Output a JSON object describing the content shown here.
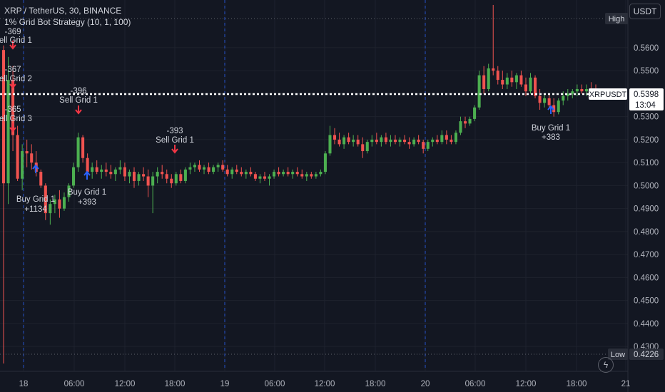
{
  "header": {
    "symbol_line": "XRP / TetherUS, 30, BINANCE",
    "strategy_line": "1% Grid Bot Strategy (10, 1, 100)"
  },
  "toolbar": {
    "currency_button": "USDT"
  },
  "price_axis": {
    "ticks": [
      "0.5600",
      "0.5500",
      "0.5400",
      "0.5300",
      "0.5200",
      "0.5100",
      "0.5000",
      "0.4900",
      "0.4800",
      "0.4700",
      "0.4600",
      "0.4500",
      "0.4400",
      "0.4300"
    ],
    "high_label": "High",
    "low_label": "Low",
    "low_value": "0.4226",
    "last_symbol": "XRPUSDT",
    "last_price": "0.5398",
    "countdown": "13:04"
  },
  "time_axis": {
    "ticks": [
      "18",
      "06:00",
      "12:00",
      "18:00",
      "19",
      "06:00",
      "12:00",
      "18:00",
      "20",
      "06:00",
      "12:00",
      "18:00",
      "21"
    ]
  },
  "colors": {
    "background": "#131722",
    "up": "#26a69a",
    "up_candle": "#4caf50",
    "down_candle": "#f05350",
    "grid_divider": "#2962ff",
    "text": "#d1d4dc"
  },
  "chart_data": {
    "type": "candlestick",
    "ylim": [
      0.4195,
      0.573
    ],
    "high": 0.5786,
    "low": 0.4226,
    "last": 0.5398,
    "session_breaks": [
      "18",
      "19",
      "20"
    ],
    "annotations": [
      {
        "kind": "sell",
        "label": "Sell Grid 1",
        "pnl": "-369",
        "price": 0.563
      },
      {
        "kind": "sell",
        "label": "Sell Grid 2",
        "pnl": "-367",
        "price": 0.552
      },
      {
        "kind": "sell",
        "label": "Sell Grid 3",
        "pnl": "-365",
        "price": 0.539
      },
      {
        "kind": "sell",
        "label": "Sell Grid 1",
        "pnl": "-396",
        "price": 0.535
      },
      {
        "kind": "sell",
        "label": "Sell Grid 1",
        "pnl": "-393",
        "price": 0.516
      },
      {
        "kind": "buy",
        "label": "Buy Grid 1",
        "pnl": "+1134",
        "price": 0.5
      },
      {
        "kind": "buy",
        "label": "Buy Grid 1",
        "pnl": "+393",
        "price": 0.503
      },
      {
        "kind": "buy",
        "label": "Buy Grid 1",
        "pnl": "+383",
        "price": 0.532
      }
    ],
    "candles": [
      {
        "o": 0.559,
        "h": 0.561,
        "l": 0.4226,
        "c": 0.501
      },
      {
        "o": 0.501,
        "h": 0.556,
        "l": 0.492,
        "c": 0.546
      },
      {
        "o": 0.546,
        "h": 0.552,
        "l": 0.515,
        "c": 0.522
      },
      {
        "o": 0.522,
        "h": 0.526,
        "l": 0.502,
        "c": 0.503
      },
      {
        "o": 0.503,
        "h": 0.518,
        "l": 0.498,
        "c": 0.515
      },
      {
        "o": 0.515,
        "h": 0.52,
        "l": 0.508,
        "c": 0.514
      },
      {
        "o": 0.514,
        "h": 0.518,
        "l": 0.507,
        "c": 0.51
      },
      {
        "o": 0.51,
        "h": 0.515,
        "l": 0.504,
        "c": 0.506
      },
      {
        "o": 0.506,
        "h": 0.507,
        "l": 0.499,
        "c": 0.5
      },
      {
        "o": 0.5,
        "h": 0.501,
        "l": 0.485,
        "c": 0.488
      },
      {
        "o": 0.488,
        "h": 0.494,
        "l": 0.483,
        "c": 0.492
      },
      {
        "o": 0.492,
        "h": 0.496,
        "l": 0.488,
        "c": 0.494
      },
      {
        "o": 0.494,
        "h": 0.498,
        "l": 0.486,
        "c": 0.49
      },
      {
        "o": 0.49,
        "h": 0.497,
        "l": 0.489,
        "c": 0.495
      },
      {
        "o": 0.495,
        "h": 0.501,
        "l": 0.493,
        "c": 0.5
      },
      {
        "o": 0.5,
        "h": 0.51,
        "l": 0.499,
        "c": 0.508
      },
      {
        "o": 0.508,
        "h": 0.523,
        "l": 0.506,
        "c": 0.521
      },
      {
        "o": 0.521,
        "h": 0.522,
        "l": 0.51,
        "c": 0.512
      },
      {
        "o": 0.512,
        "h": 0.514,
        "l": 0.504,
        "c": 0.506
      },
      {
        "o": 0.506,
        "h": 0.51,
        "l": 0.503,
        "c": 0.508
      },
      {
        "o": 0.508,
        "h": 0.511,
        "l": 0.505,
        "c": 0.506
      },
      {
        "o": 0.506,
        "h": 0.509,
        "l": 0.503,
        "c": 0.507
      },
      {
        "o": 0.507,
        "h": 0.51,
        "l": 0.504,
        "c": 0.506
      },
      {
        "o": 0.506,
        "h": 0.509,
        "l": 0.503,
        "c": 0.505
      },
      {
        "o": 0.505,
        "h": 0.508,
        "l": 0.502,
        "c": 0.507
      },
      {
        "o": 0.507,
        "h": 0.511,
        "l": 0.505,
        "c": 0.508
      },
      {
        "o": 0.508,
        "h": 0.51,
        "l": 0.502,
        "c": 0.504
      },
      {
        "o": 0.504,
        "h": 0.507,
        "l": 0.501,
        "c": 0.506
      },
      {
        "o": 0.506,
        "h": 0.508,
        "l": 0.499,
        "c": 0.502
      },
      {
        "o": 0.502,
        "h": 0.506,
        "l": 0.5,
        "c": 0.505
      },
      {
        "o": 0.505,
        "h": 0.508,
        "l": 0.502,
        "c": 0.504
      },
      {
        "o": 0.504,
        "h": 0.507,
        "l": 0.495,
        "c": 0.5
      },
      {
        "o": 0.5,
        "h": 0.506,
        "l": 0.488,
        "c": 0.504
      },
      {
        "o": 0.504,
        "h": 0.508,
        "l": 0.501,
        "c": 0.506
      },
      {
        "o": 0.506,
        "h": 0.509,
        "l": 0.503,
        "c": 0.505
      },
      {
        "o": 0.505,
        "h": 0.507,
        "l": 0.501,
        "c": 0.503
      },
      {
        "o": 0.503,
        "h": 0.505,
        "l": 0.499,
        "c": 0.501
      },
      {
        "o": 0.501,
        "h": 0.506,
        "l": 0.5,
        "c": 0.505
      },
      {
        "o": 0.505,
        "h": 0.507,
        "l": 0.501,
        "c": 0.502
      },
      {
        "o": 0.502,
        "h": 0.508,
        "l": 0.501,
        "c": 0.507
      },
      {
        "o": 0.507,
        "h": 0.51,
        "l": 0.505,
        "c": 0.508
      },
      {
        "o": 0.508,
        "h": 0.51,
        "l": 0.506,
        "c": 0.509
      },
      {
        "o": 0.509,
        "h": 0.511,
        "l": 0.506,
        "c": 0.507
      },
      {
        "o": 0.507,
        "h": 0.509,
        "l": 0.505,
        "c": 0.508
      },
      {
        "o": 0.508,
        "h": 0.51,
        "l": 0.505,
        "c": 0.506
      },
      {
        "o": 0.506,
        "h": 0.509,
        "l": 0.505,
        "c": 0.508
      },
      {
        "o": 0.508,
        "h": 0.51,
        "l": 0.506,
        "c": 0.509
      },
      {
        "o": 0.509,
        "h": 0.511,
        "l": 0.506,
        "c": 0.507
      },
      {
        "o": 0.507,
        "h": 0.509,
        "l": 0.504,
        "c": 0.505
      },
      {
        "o": 0.505,
        "h": 0.508,
        "l": 0.503,
        "c": 0.507
      },
      {
        "o": 0.507,
        "h": 0.509,
        "l": 0.505,
        "c": 0.506
      },
      {
        "o": 0.506,
        "h": 0.508,
        "l": 0.504,
        "c": 0.505
      },
      {
        "o": 0.505,
        "h": 0.507,
        "l": 0.503,
        "c": 0.506
      },
      {
        "o": 0.506,
        "h": 0.508,
        "l": 0.504,
        "c": 0.505
      },
      {
        "o": 0.505,
        "h": 0.506,
        "l": 0.502,
        "c": 0.503
      },
      {
        "o": 0.503,
        "h": 0.505,
        "l": 0.501,
        "c": 0.504
      },
      {
        "o": 0.504,
        "h": 0.506,
        "l": 0.502,
        "c": 0.503
      },
      {
        "o": 0.503,
        "h": 0.505,
        "l": 0.5,
        "c": 0.504
      },
      {
        "o": 0.504,
        "h": 0.507,
        "l": 0.503,
        "c": 0.506
      },
      {
        "o": 0.506,
        "h": 0.508,
        "l": 0.504,
        "c": 0.505
      },
      {
        "o": 0.505,
        "h": 0.507,
        "l": 0.504,
        "c": 0.506
      },
      {
        "o": 0.506,
        "h": 0.508,
        "l": 0.504,
        "c": 0.505
      },
      {
        "o": 0.505,
        "h": 0.507,
        "l": 0.503,
        "c": 0.506
      },
      {
        "o": 0.506,
        "h": 0.508,
        "l": 0.504,
        "c": 0.505
      },
      {
        "o": 0.505,
        "h": 0.507,
        "l": 0.503,
        "c": 0.504
      },
      {
        "o": 0.504,
        "h": 0.506,
        "l": 0.502,
        "c": 0.505
      },
      {
        "o": 0.505,
        "h": 0.506,
        "l": 0.503,
        "c": 0.504
      },
      {
        "o": 0.504,
        "h": 0.506,
        "l": 0.503,
        "c": 0.505
      },
      {
        "o": 0.505,
        "h": 0.507,
        "l": 0.504,
        "c": 0.506
      },
      {
        "o": 0.506,
        "h": 0.515,
        "l": 0.505,
        "c": 0.514
      },
      {
        "o": 0.514,
        "h": 0.526,
        "l": 0.513,
        "c": 0.522
      },
      {
        "o": 0.522,
        "h": 0.525,
        "l": 0.518,
        "c": 0.52
      },
      {
        "o": 0.52,
        "h": 0.523,
        "l": 0.517,
        "c": 0.518
      },
      {
        "o": 0.518,
        "h": 0.522,
        "l": 0.516,
        "c": 0.521
      },
      {
        "o": 0.521,
        "h": 0.523,
        "l": 0.518,
        "c": 0.519
      },
      {
        "o": 0.519,
        "h": 0.522,
        "l": 0.517,
        "c": 0.52
      },
      {
        "o": 0.52,
        "h": 0.522,
        "l": 0.517,
        "c": 0.518
      },
      {
        "o": 0.518,
        "h": 0.521,
        "l": 0.512,
        "c": 0.515
      },
      {
        "o": 0.515,
        "h": 0.52,
        "l": 0.514,
        "c": 0.519
      },
      {
        "o": 0.519,
        "h": 0.522,
        "l": 0.517,
        "c": 0.52
      },
      {
        "o": 0.52,
        "h": 0.523,
        "l": 0.518,
        "c": 0.519
      },
      {
        "o": 0.519,
        "h": 0.522,
        "l": 0.517,
        "c": 0.521
      },
      {
        "o": 0.521,
        "h": 0.523,
        "l": 0.518,
        "c": 0.519
      },
      {
        "o": 0.519,
        "h": 0.522,
        "l": 0.517,
        "c": 0.52
      },
      {
        "o": 0.52,
        "h": 0.522,
        "l": 0.518,
        "c": 0.519
      },
      {
        "o": 0.519,
        "h": 0.521,
        "l": 0.517,
        "c": 0.52
      },
      {
        "o": 0.52,
        "h": 0.522,
        "l": 0.518,
        "c": 0.519
      },
      {
        "o": 0.519,
        "h": 0.521,
        "l": 0.516,
        "c": 0.518
      },
      {
        "o": 0.518,
        "h": 0.521,
        "l": 0.517,
        "c": 0.52
      },
      {
        "o": 0.52,
        "h": 0.522,
        "l": 0.518,
        "c": 0.519
      },
      {
        "o": 0.519,
        "h": 0.52,
        "l": 0.514,
        "c": 0.516
      },
      {
        "o": 0.516,
        "h": 0.52,
        "l": 0.515,
        "c": 0.519
      },
      {
        "o": 0.519,
        "h": 0.521,
        "l": 0.517,
        "c": 0.52
      },
      {
        "o": 0.52,
        "h": 0.522,
        "l": 0.518,
        "c": 0.519
      },
      {
        "o": 0.519,
        "h": 0.524,
        "l": 0.518,
        "c": 0.522
      },
      {
        "o": 0.522,
        "h": 0.524,
        "l": 0.518,
        "c": 0.52
      },
      {
        "o": 0.52,
        "h": 0.522,
        "l": 0.518,
        "c": 0.519
      },
      {
        "o": 0.519,
        "h": 0.524,
        "l": 0.518,
        "c": 0.523
      },
      {
        "o": 0.523,
        "h": 0.53,
        "l": 0.522,
        "c": 0.528
      },
      {
        "o": 0.528,
        "h": 0.53,
        "l": 0.525,
        "c": 0.527
      },
      {
        "o": 0.527,
        "h": 0.53,
        "l": 0.526,
        "c": 0.529
      },
      {
        "o": 0.529,
        "h": 0.535,
        "l": 0.528,
        "c": 0.534
      },
      {
        "o": 0.534,
        "h": 0.55,
        "l": 0.533,
        "c": 0.548
      },
      {
        "o": 0.548,
        "h": 0.552,
        "l": 0.54,
        "c": 0.542
      },
      {
        "o": 0.542,
        "h": 0.553,
        "l": 0.541,
        "c": 0.551
      },
      {
        "o": 0.551,
        "h": 0.5786,
        "l": 0.548,
        "c": 0.55
      },
      {
        "o": 0.55,
        "h": 0.552,
        "l": 0.544,
        "c": 0.546
      },
      {
        "o": 0.546,
        "h": 0.55,
        "l": 0.542,
        "c": 0.544
      },
      {
        "o": 0.544,
        "h": 0.549,
        "l": 0.542,
        "c": 0.547
      },
      {
        "o": 0.547,
        "h": 0.55,
        "l": 0.543,
        "c": 0.545
      },
      {
        "o": 0.545,
        "h": 0.549,
        "l": 0.542,
        "c": 0.548
      },
      {
        "o": 0.548,
        "h": 0.55,
        "l": 0.543,
        "c": 0.544
      },
      {
        "o": 0.544,
        "h": 0.547,
        "l": 0.539,
        "c": 0.541
      },
      {
        "o": 0.541,
        "h": 0.549,
        "l": 0.54,
        "c": 0.547
      },
      {
        "o": 0.547,
        "h": 0.548,
        "l": 0.538,
        "c": 0.539
      },
      {
        "o": 0.539,
        "h": 0.542,
        "l": 0.533,
        "c": 0.536
      },
      {
        "o": 0.536,
        "h": 0.54,
        "l": 0.534,
        "c": 0.538
      },
      {
        "o": 0.538,
        "h": 0.54,
        "l": 0.534,
        "c": 0.535
      },
      {
        "o": 0.535,
        "h": 0.538,
        "l": 0.53,
        "c": 0.532
      },
      {
        "o": 0.532,
        "h": 0.538,
        "l": 0.531,
        "c": 0.537
      },
      {
        "o": 0.537,
        "h": 0.541,
        "l": 0.535,
        "c": 0.539
      },
      {
        "o": 0.539,
        "h": 0.542,
        "l": 0.537,
        "c": 0.54
      },
      {
        "o": 0.54,
        "h": 0.542,
        "l": 0.538,
        "c": 0.541
      },
      {
        "o": 0.541,
        "h": 0.544,
        "l": 0.539,
        "c": 0.542
      },
      {
        "o": 0.542,
        "h": 0.544,
        "l": 0.54,
        "c": 0.541
      },
      {
        "o": 0.541,
        "h": 0.544,
        "l": 0.539,
        "c": 0.542
      },
      {
        "o": 0.542,
        "h": 0.545,
        "l": 0.54,
        "c": 0.541
      },
      {
        "o": 0.541,
        "h": 0.544,
        "l": 0.539,
        "c": 0.5398
      }
    ]
  }
}
